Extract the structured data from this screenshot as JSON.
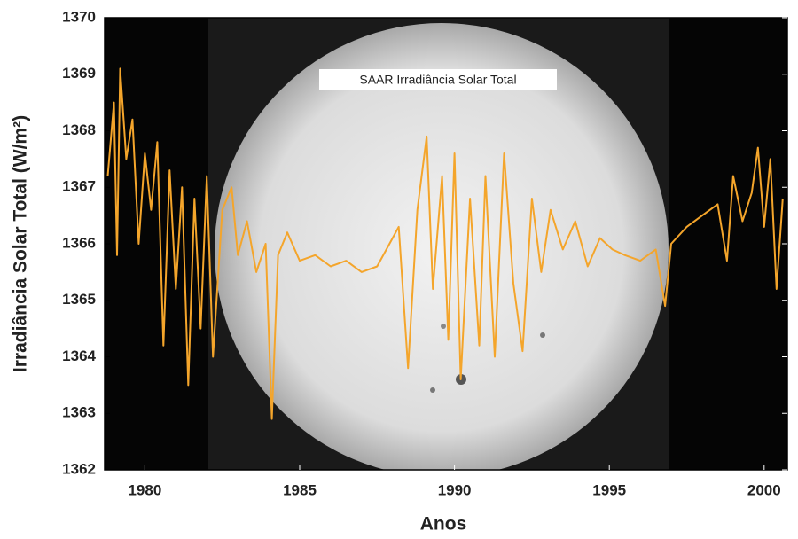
{
  "chart_data": {
    "type": "line",
    "title": "SAAR Irradiância Solar Total",
    "x_label": "Anos",
    "y_label": "Irradiância Solar Total (W/m²)",
    "color": "#f4a52b",
    "x": [
      1978.8,
      1979.0,
      1979.1,
      1979.2,
      1979.4,
      1979.6,
      1979.8,
      1980.0,
      1980.2,
      1980.4,
      1980.6,
      1980.8,
      1981.0,
      1981.2,
      1981.4,
      1981.6,
      1981.8,
      1982.0,
      1982.2,
      1982.5,
      1982.8,
      1983.0,
      1983.3,
      1983.6,
      1983.9,
      1984.1,
      1984.3,
      1984.6,
      1985.0,
      1985.5,
      1986.0,
      1986.5,
      1987.0,
      1987.5,
      1987.8,
      1988.2,
      1988.5,
      1988.8,
      1989.1,
      1989.3,
      1989.6,
      1989.8,
      1990.0,
      1990.2,
      1990.5,
      1990.8,
      1991.0,
      1991.3,
      1991.6,
      1991.9,
      1992.2,
      1992.5,
      1992.8,
      1993.1,
      1993.5,
      1993.9,
      1994.3,
      1994.7,
      1995.1,
      1995.5,
      1996.0,
      1996.5,
      1996.8,
      1997.0,
      1997.5,
      1998.0,
      1998.5,
      1998.8,
      1999.0,
      1999.3,
      1999.6,
      1999.8,
      2000.0,
      2000.2,
      2000.4,
      2000.6
    ],
    "values": [
      1367.2,
      1368.5,
      1365.8,
      1369.1,
      1367.5,
      1368.2,
      1366.0,
      1367.6,
      1366.6,
      1367.8,
      1364.2,
      1367.3,
      1365.2,
      1367.0,
      1363.5,
      1366.8,
      1364.5,
      1367.2,
      1364.0,
      1366.6,
      1367.0,
      1365.8,
      1366.4,
      1365.5,
      1366.0,
      1362.9,
      1365.8,
      1366.2,
      1365.7,
      1365.8,
      1365.6,
      1365.7,
      1365.5,
      1365.6,
      1365.9,
      1366.3,
      1363.8,
      1366.6,
      1367.9,
      1365.2,
      1367.2,
      1364.3,
      1367.6,
      1363.6,
      1366.8,
      1364.2,
      1367.2,
      1364.0,
      1367.6,
      1365.3,
      1364.1,
      1366.8,
      1365.5,
      1366.6,
      1365.9,
      1366.4,
      1365.6,
      1366.1,
      1365.9,
      1365.8,
      1365.7,
      1365.9,
      1364.9,
      1366.0,
      1366.3,
      1366.5,
      1366.7,
      1365.7,
      1367.2,
      1366.4,
      1366.9,
      1367.7,
      1366.3,
      1367.5,
      1365.2,
      1366.8
    ],
    "xlim": [
      1978.7,
      2000.75
    ],
    "ylim": [
      1362,
      1370
    ],
    "xticks": [
      1980,
      1985,
      1990,
      1995,
      2000
    ],
    "yticks": [
      1362,
      1363,
      1364,
      1365,
      1366,
      1367,
      1368,
      1369,
      1370
    ]
  }
}
